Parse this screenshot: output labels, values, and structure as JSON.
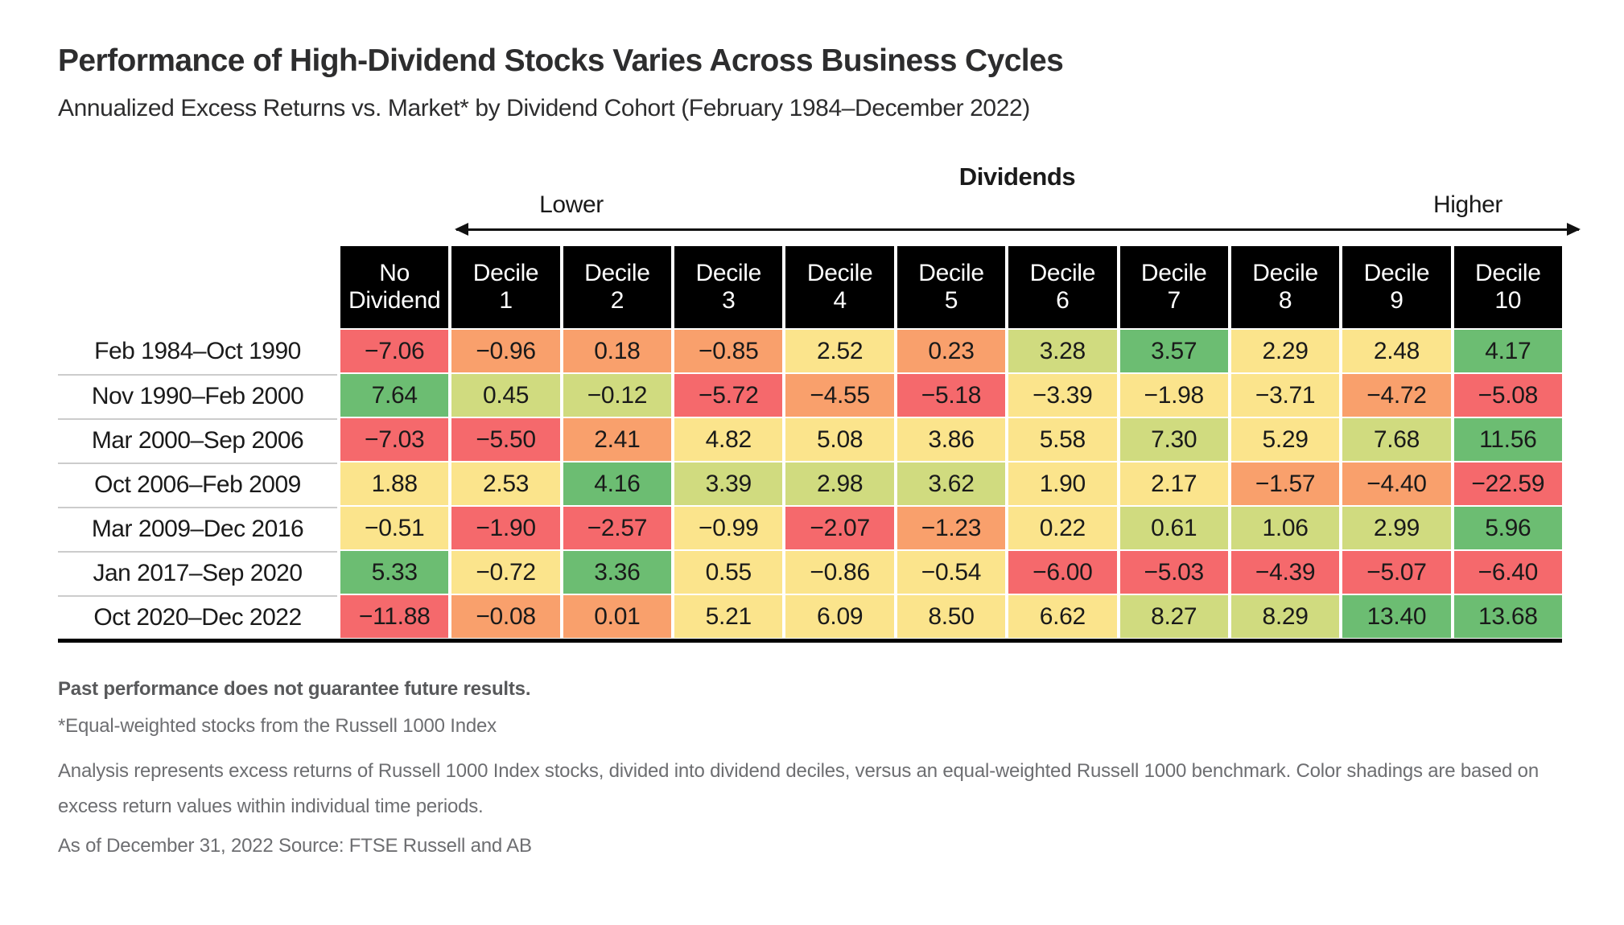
{
  "title": "Performance of High-Dividend Stocks Varies Across Business Cycles",
  "subtitle": "Annualized Excess Returns vs. Market* by Dividend Cohort (February 1984–December 2022)",
  "axis": {
    "title": "Dividends",
    "lower_label": "Lower",
    "higher_label": "Higher"
  },
  "colors": {
    "red": "#F5696C",
    "orange": "#F9A06C",
    "yellow": "#FBE48C",
    "yellowgreen": "#D0DB7F",
    "green": "#6CBD72",
    "header_bg": "#000000",
    "header_text": "#FFFFFF"
  },
  "chart_data": {
    "type": "heatmap",
    "title": "Performance of High-Dividend Stocks Varies Across Business Cycles",
    "subtitle": "Annualized Excess Returns vs. Market* by Dividend Cohort (February 1984–December 2022)",
    "value_unit": "annualized excess return, percent",
    "columns": [
      "No Dividend",
      "Decile 1",
      "Decile 2",
      "Decile 3",
      "Decile 4",
      "Decile 5",
      "Decile 6",
      "Decile 7",
      "Decile 8",
      "Decile 9",
      "Decile 10"
    ],
    "rows": [
      {
        "period": "Feb 1984–Oct 1990",
        "values": [
          -7.06,
          -0.96,
          0.18,
          -0.85,
          2.52,
          0.23,
          3.28,
          3.57,
          2.29,
          2.48,
          4.17
        ],
        "colors": [
          "red",
          "orange",
          "orange",
          "orange",
          "yellow",
          "orange",
          "yellowgreen",
          "green",
          "yellow",
          "yellow",
          "green"
        ]
      },
      {
        "period": "Nov 1990–Feb 2000",
        "values": [
          7.64,
          0.45,
          -0.12,
          -5.72,
          -4.55,
          -5.18,
          -3.39,
          -1.98,
          -3.71,
          -4.72,
          -5.08
        ],
        "colors": [
          "green",
          "yellowgreen",
          "yellowgreen",
          "red",
          "orange",
          "red",
          "yellow",
          "yellow",
          "yellow",
          "orange",
          "red"
        ]
      },
      {
        "period": "Mar 2000–Sep 2006",
        "values": [
          -7.03,
          -5.5,
          2.41,
          4.82,
          5.08,
          3.86,
          5.58,
          7.3,
          5.29,
          7.68,
          11.56
        ],
        "colors": [
          "red",
          "red",
          "orange",
          "yellow",
          "yellow",
          "yellow",
          "yellow",
          "yellowgreen",
          "yellow",
          "yellowgreen",
          "green"
        ]
      },
      {
        "period": "Oct 2006–Feb 2009",
        "values": [
          1.88,
          2.53,
          4.16,
          3.39,
          2.98,
          3.62,
          1.9,
          2.17,
          -1.57,
          -4.4,
          -22.59
        ],
        "colors": [
          "yellow",
          "yellow",
          "green",
          "yellowgreen",
          "yellowgreen",
          "yellowgreen",
          "yellow",
          "yellow",
          "orange",
          "orange",
          "red"
        ]
      },
      {
        "period": "Mar 2009–Dec 2016",
        "values": [
          -0.51,
          -1.9,
          -2.57,
          -0.99,
          -2.07,
          -1.23,
          0.22,
          0.61,
          1.06,
          2.99,
          5.96
        ],
        "colors": [
          "yellow",
          "red",
          "red",
          "yellow",
          "red",
          "orange",
          "yellow",
          "yellowgreen",
          "yellowgreen",
          "yellowgreen",
          "green"
        ]
      },
      {
        "period": "Jan 2017–Sep 2020",
        "values": [
          5.33,
          -0.72,
          3.36,
          0.55,
          -0.86,
          -0.54,
          -6.0,
          -5.03,
          -4.39,
          -5.07,
          -6.4
        ],
        "colors": [
          "green",
          "yellow",
          "green",
          "yellow",
          "yellow",
          "yellow",
          "red",
          "red",
          "red",
          "red",
          "red"
        ]
      },
      {
        "period": "Oct 2020–Dec 2022",
        "values": [
          -11.88,
          -0.08,
          0.01,
          5.21,
          6.09,
          8.5,
          6.62,
          8.27,
          8.29,
          13.4,
          13.68
        ],
        "colors": [
          "red",
          "orange",
          "orange",
          "yellow",
          "yellow",
          "yellow",
          "yellow",
          "yellowgreen",
          "yellowgreen",
          "green",
          "green"
        ]
      }
    ],
    "legend": "color shading per row: red = worst excess return within period, green = best excess return within period"
  },
  "footnotes": {
    "disclaimer": "Past performance does not guarantee future results.",
    "footnote1": "*Equal-weighted stocks from the Russell 1000 Index",
    "footnote2": "Analysis represents excess returns of Russell 1000 Index stocks, divided into dividend deciles, versus an equal-weighted Russell 1000 benchmark. Color shadings are based on excess return values within individual time periods.",
    "footnote3": "As of December 31, 2022 Source: FTSE Russell and AB"
  }
}
